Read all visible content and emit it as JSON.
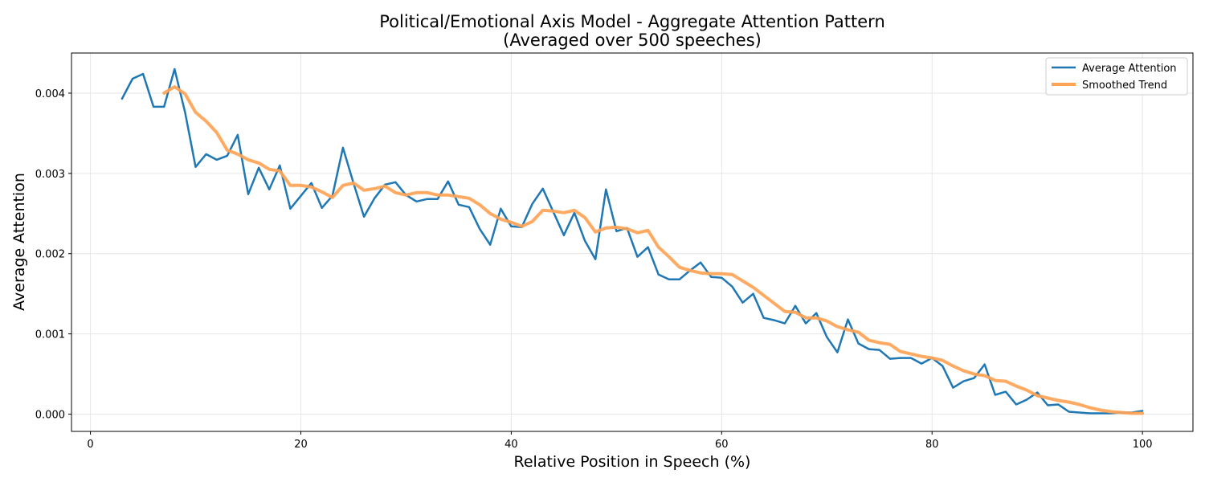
{
  "chart_data": {
    "type": "line",
    "title": "Political/Emotional Axis Model - Aggregate Attention Pattern",
    "subtitle": "(Averaged over 500 speeches)",
    "xlabel": "Relative Position in Speech (%)",
    "ylabel": "Average Attention",
    "xlim": [
      -1.8,
      104.8
    ],
    "ylim": [
      -0.000215,
      0.0045
    ],
    "xticks": [
      0,
      20,
      40,
      60,
      80,
      100
    ],
    "xtick_labels": [
      "0",
      "20",
      "40",
      "60",
      "80",
      "100"
    ],
    "yticks": [
      0.0,
      0.001,
      0.002,
      0.003,
      0.004
    ],
    "ytick_labels": [
      "0.000",
      "0.001",
      "0.002",
      "0.003",
      "0.004"
    ],
    "grid": true,
    "legend_position": "top-right",
    "series": [
      {
        "name": "Average Attention",
        "color": "#1f77b4",
        "x": [
          3.0,
          4.0,
          5.0,
          6.0,
          7.0,
          8.0,
          9.0,
          10.0,
          11.0,
          12.0,
          13.0,
          14.0,
          15.0,
          16.0,
          17.0,
          18.0,
          19.0,
          20.0,
          21.0,
          22.0,
          23.0,
          24.0,
          25.0,
          26.0,
          27.0,
          28.0,
          29.0,
          30.0,
          31.0,
          32.0,
          33.0,
          34.0,
          35.0,
          36.0,
          37.0,
          38.0,
          39.0,
          40.0,
          41.0,
          42.0,
          43.0,
          44.0,
          45.0,
          46.0,
          47.0,
          48.0,
          49.0,
          50.0,
          51.0,
          52.0,
          53.0,
          54.0,
          55.0,
          56.0,
          57.0,
          58.0,
          59.0,
          60.0,
          61.0,
          62.0,
          63.0,
          64.0,
          65.0,
          66.0,
          67.0,
          68.0,
          69.0,
          70.0,
          71.0,
          72.0,
          73.0,
          74.0,
          75.0,
          76.0,
          77.0,
          78.0,
          79.0,
          80.0,
          81.0,
          82.0,
          83.0,
          84.0,
          85.0,
          86.0,
          87.0,
          88.0,
          89.0,
          90.0,
          91.0,
          92.0,
          93.0,
          94.0,
          95.0,
          96.0,
          97.0,
          98.0,
          99.0,
          100.0
        ],
        "values": [
          0.00393,
          0.00418,
          0.00424,
          0.00383,
          0.00383,
          0.0043,
          0.00376,
          0.00308,
          0.00324,
          0.00317,
          0.00322,
          0.00348,
          0.00274,
          0.00307,
          0.0028,
          0.0031,
          0.00256,
          0.00272,
          0.00288,
          0.00257,
          0.00272,
          0.00332,
          0.00288,
          0.00246,
          0.00269,
          0.00286,
          0.00289,
          0.00273,
          0.00265,
          0.00268,
          0.00268,
          0.0029,
          0.00261,
          0.00258,
          0.00231,
          0.00211,
          0.00256,
          0.00234,
          0.00233,
          0.00262,
          0.00281,
          0.00252,
          0.00223,
          0.00251,
          0.00216,
          0.00193,
          0.0028,
          0.00228,
          0.00232,
          0.00196,
          0.00208,
          0.00174,
          0.00168,
          0.00168,
          0.00179,
          0.00189,
          0.00171,
          0.0017,
          0.00159,
          0.00139,
          0.0015,
          0.0012,
          0.00117,
          0.00113,
          0.00135,
          0.00113,
          0.00126,
          0.00096,
          0.00077,
          0.00118,
          0.00088,
          0.00081,
          0.0008,
          0.00069,
          0.0007,
          0.0007,
          0.00063,
          0.0007,
          0.0006,
          0.00033,
          0.00041,
          0.00045,
          0.00062,
          0.00024,
          0.00028,
          0.00012,
          0.00018,
          0.00027,
          0.00011,
          0.00012,
          3e-05,
          2e-05,
          1e-05,
          1e-05,
          1e-05,
          2e-05,
          2e-05,
          4e-05
        ]
      },
      {
        "name": "Smoothed Trend",
        "color": "#ffa355",
        "x": [
          7.0,
          8.0,
          9.0,
          10.0,
          11.0,
          12.0,
          13.0,
          14.0,
          15.0,
          16.0,
          17.0,
          18.0,
          19.0,
          20.0,
          21.0,
          22.0,
          23.0,
          24.0,
          25.0,
          26.0,
          27.0,
          28.0,
          29.0,
          30.0,
          31.0,
          32.0,
          33.0,
          34.0,
          35.0,
          36.0,
          37.0,
          38.0,
          39.0,
          40.0,
          41.0,
          42.0,
          43.0,
          44.0,
          45.0,
          46.0,
          47.0,
          48.0,
          49.0,
          50.0,
          51.0,
          52.0,
          53.0,
          54.0,
          55.0,
          56.0,
          57.0,
          58.0,
          59.0,
          60.0,
          61.0,
          62.0,
          63.0,
          64.0,
          65.0,
          66.0,
          67.0,
          68.0,
          69.0,
          70.0,
          71.0,
          72.0,
          73.0,
          74.0,
          75.0,
          76.0,
          77.0,
          78.0,
          79.0,
          80.0,
          81.0,
          82.0,
          83.0,
          84.0,
          85.0,
          86.0,
          87.0,
          88.0,
          89.0,
          90.0,
          91.0,
          92.0,
          93.0,
          94.0,
          95.0,
          96.0,
          97.0,
          98.0,
          99.0,
          100.0
        ],
        "values": [
          0.004,
          0.00408,
          0.00399,
          0.00376,
          0.00365,
          0.00351,
          0.00329,
          0.00324,
          0.00317,
          0.00313,
          0.00305,
          0.00303,
          0.00285,
          0.00285,
          0.00283,
          0.00277,
          0.0027,
          0.00285,
          0.00288,
          0.00279,
          0.00281,
          0.00284,
          0.00276,
          0.00273,
          0.00276,
          0.00276,
          0.00273,
          0.00273,
          0.00271,
          0.00269,
          0.00261,
          0.0025,
          0.00243,
          0.00239,
          0.00234,
          0.0024,
          0.00254,
          0.00253,
          0.00251,
          0.00254,
          0.00245,
          0.00227,
          0.00232,
          0.00233,
          0.00231,
          0.00226,
          0.00229,
          0.00208,
          0.00196,
          0.00183,
          0.00179,
          0.00176,
          0.00175,
          0.00175,
          0.00174,
          0.00166,
          0.00158,
          0.00148,
          0.00138,
          0.00128,
          0.00127,
          0.0012,
          0.0012,
          0.00116,
          0.00109,
          0.00105,
          0.00102,
          0.00092,
          0.00089,
          0.00087,
          0.00078,
          0.00075,
          0.00072,
          0.0007,
          0.00067,
          0.0006,
          0.00054,
          0.0005,
          0.00048,
          0.00042,
          0.00041,
          0.00035,
          0.0003,
          0.00023,
          0.0002,
          0.00017,
          0.00015,
          0.00012,
          8e-05,
          5e-05,
          3e-05,
          2e-05,
          1e-05,
          1e-05
        ]
      }
    ]
  }
}
